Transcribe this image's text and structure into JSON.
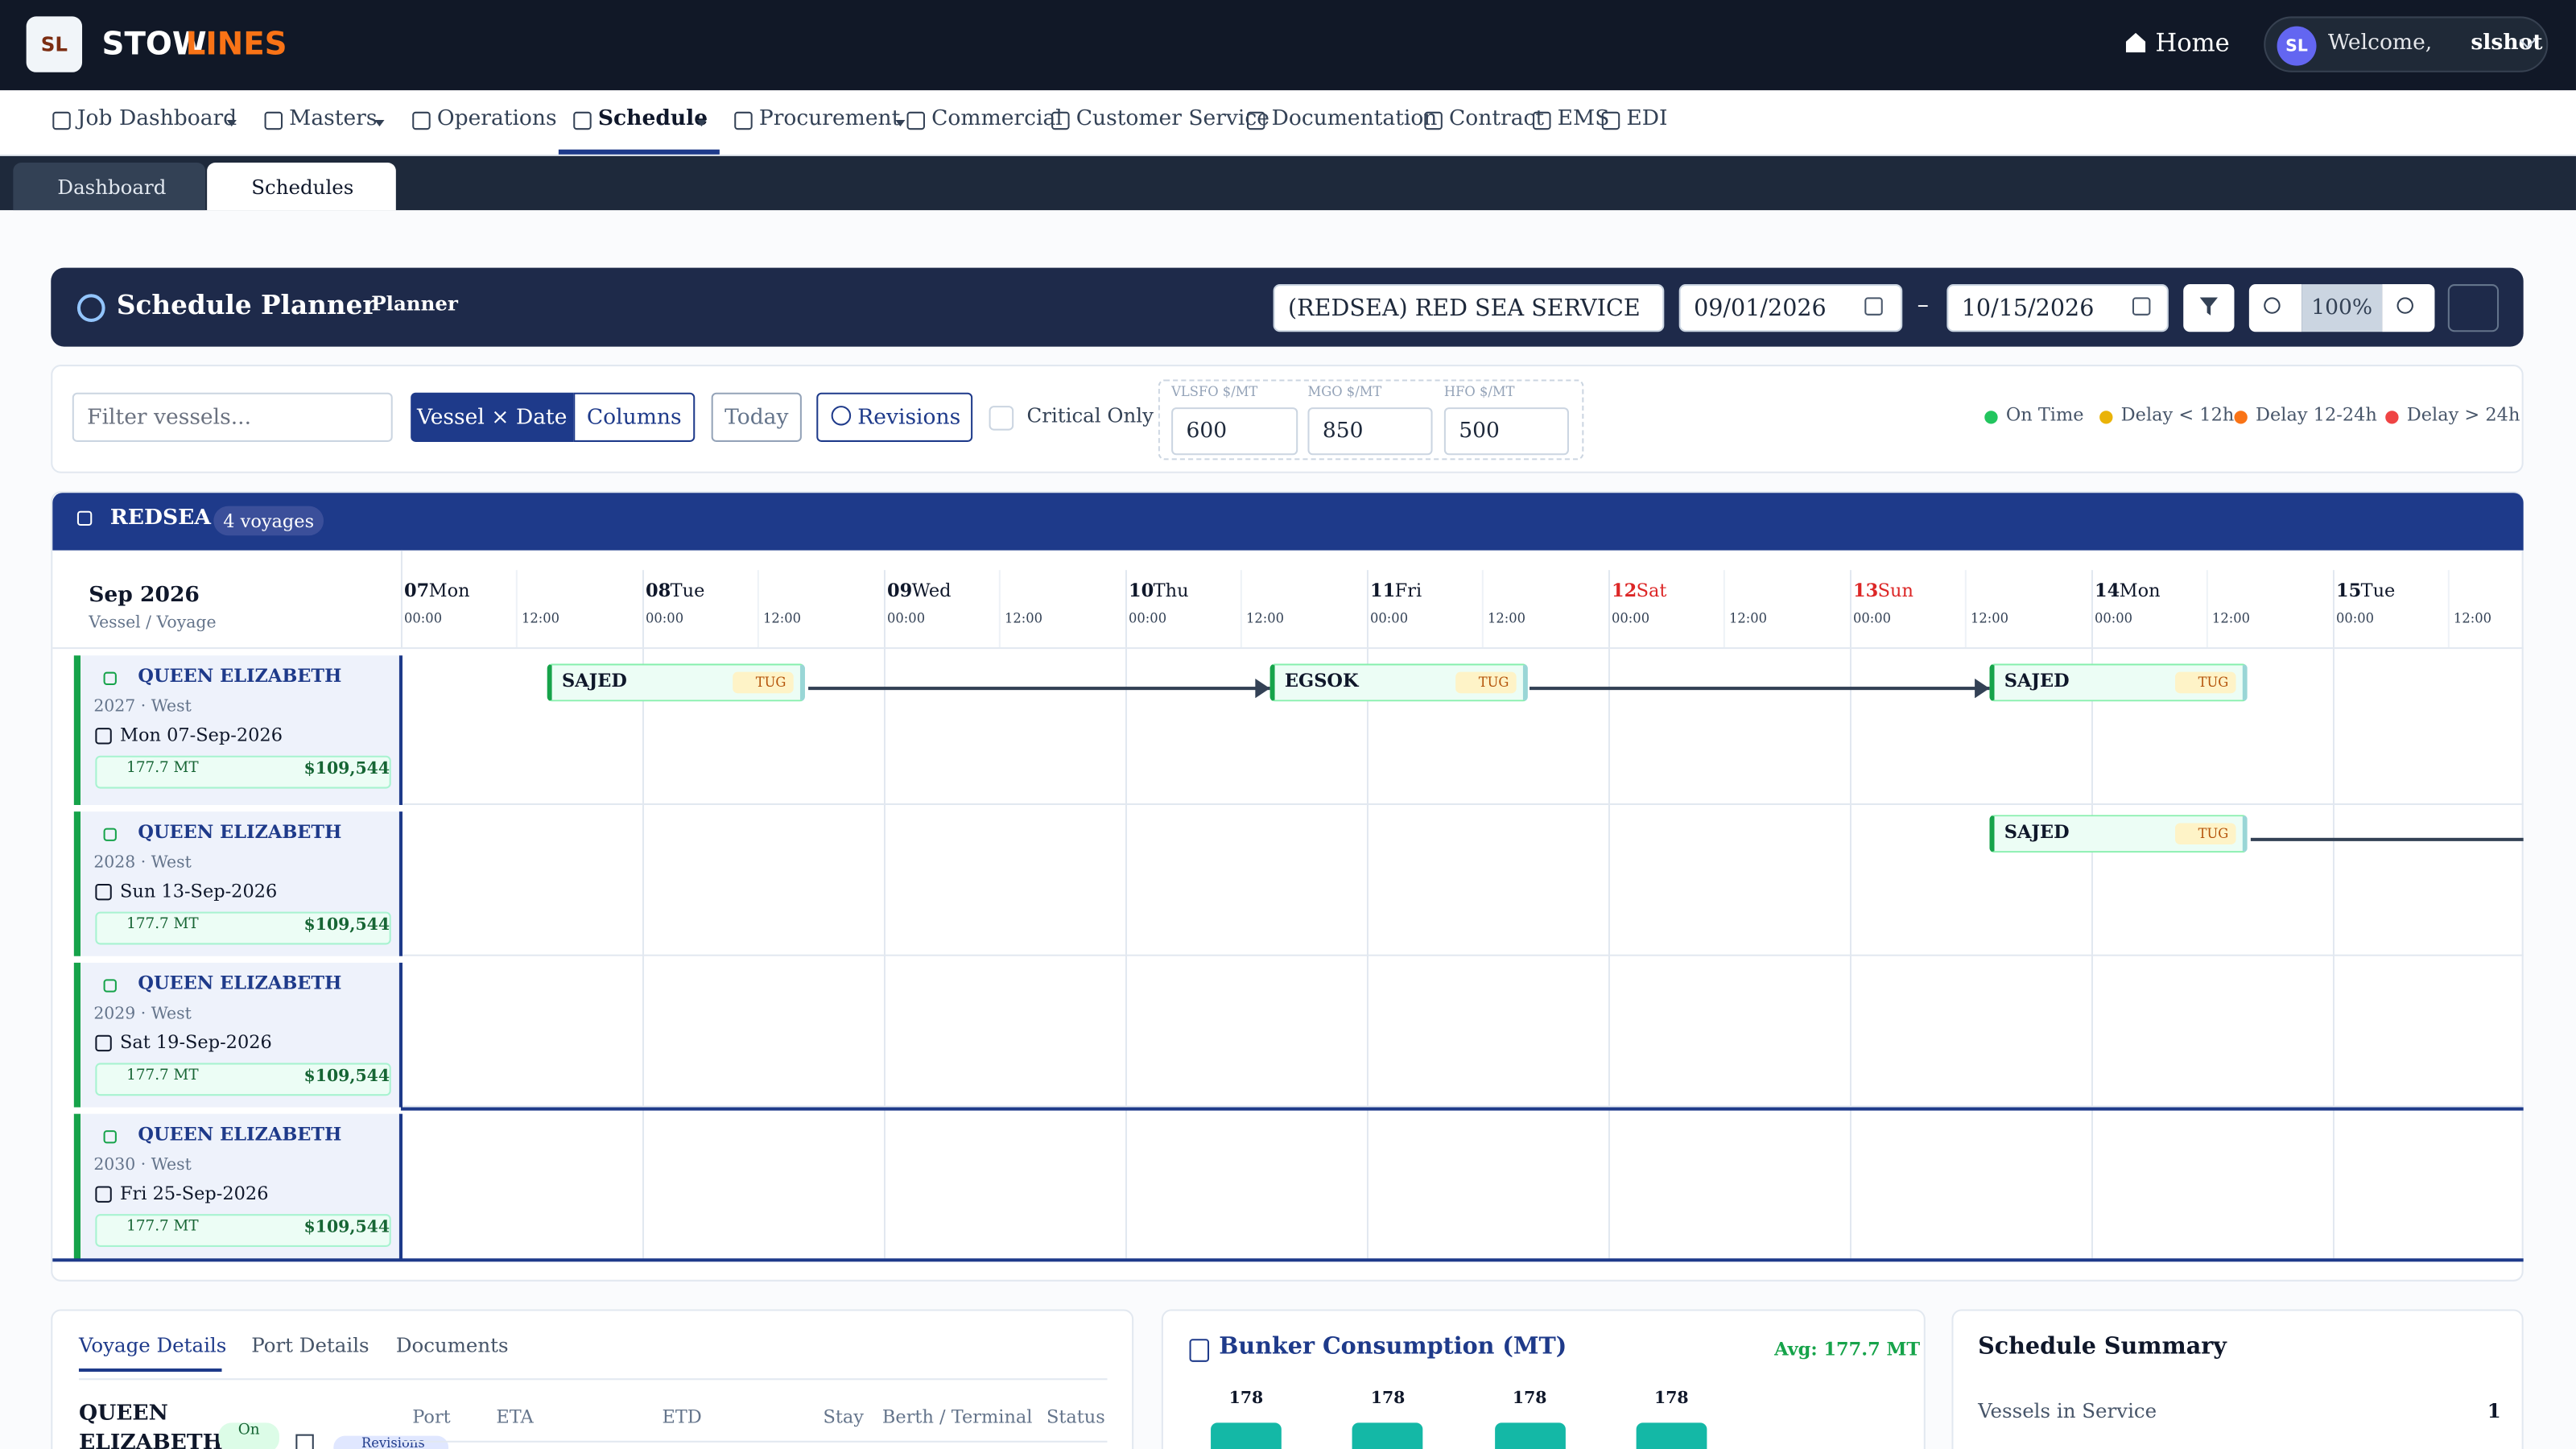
{
  "brand": {
    "logo": "SL",
    "name_a": "STOW",
    "name_b": "LINES"
  },
  "header": {
    "home": "Home",
    "avatar": "SL",
    "welcome": "Welcome,",
    "user": "slshot"
  },
  "nav": [
    "Job Dashboard",
    "Masters",
    "Operations",
    "Schedule",
    "Procurement",
    "Commercial",
    "Customer Service",
    "Documentation",
    "Contract",
    "EMS",
    "EDI"
  ],
  "tabs": [
    "Dashboard",
    "Schedules"
  ],
  "planner": {
    "title": "Schedule Planner",
    "subtitle": "Planner",
    "service": "(REDSEA) RED SEA SERVICE",
    "from": "09/01/2026",
    "dash": "–",
    "to": "10/15/2026",
    "zoom": "100%"
  },
  "toolbar": {
    "filter_placeholder": "Filter vessels...",
    "view": [
      "Vessel × Date",
      "Columns"
    ],
    "today": "Today",
    "revisions": "Revisions",
    "critical": "Critical Only",
    "fuels": [
      {
        "label": "VLSFO $/MT",
        "value": "600"
      },
      {
        "label": "MGO $/MT",
        "value": "850"
      },
      {
        "label": "HFO $/MT",
        "value": "500"
      }
    ],
    "legend": [
      {
        "label": "On Time",
        "color": "#22c55e"
      },
      {
        "label": "Delay < 12h",
        "color": "#eab308"
      },
      {
        "label": "Delay 12-24h",
        "color": "#f97316"
      },
      {
        "label": "Delay > 24h",
        "color": "#ef4444"
      }
    ]
  },
  "group": {
    "name": "REDSEA",
    "count": "4 voyages"
  },
  "timeline": {
    "month": "Sep 2026",
    "sub": "Vessel / Voyage",
    "hours": [
      "00:00",
      "12:00"
    ],
    "days": [
      {
        "num": "07",
        "name": "Mon",
        "weekend": false
      },
      {
        "num": "08",
        "name": "Tue",
        "weekend": false
      },
      {
        "num": "09",
        "name": "Wed",
        "weekend": false
      },
      {
        "num": "10",
        "name": "Thu",
        "weekend": false
      },
      {
        "num": "11",
        "name": "Fri",
        "weekend": false
      },
      {
        "num": "12",
        "name": "Sat",
        "weekend": true
      },
      {
        "num": "13",
        "name": "Sun",
        "weekend": true
      },
      {
        "num": "14",
        "name": "Mon",
        "weekend": false
      },
      {
        "num": "15",
        "name": "Tue",
        "weekend": false
      }
    ]
  },
  "vessels": [
    {
      "name": "QUEEN ELIZABETH",
      "voyage": "2027 · West",
      "date": "Mon 07-Sep-2026",
      "fuel": "177.7 MT",
      "cost": "$109,544"
    },
    {
      "name": "QUEEN ELIZABETH",
      "voyage": "2028 · West",
      "date": "Sun 13-Sep-2026",
      "fuel": "177.7 MT",
      "cost": "$109,544"
    },
    {
      "name": "QUEEN ELIZABETH",
      "voyage": "2029 · West",
      "date": "Sat 19-Sep-2026",
      "fuel": "177.7 MT",
      "cost": "$109,544"
    },
    {
      "name": "QUEEN ELIZABETH",
      "voyage": "2030 · West",
      "date": "Fri 25-Sep-2026",
      "fuel": "177.7 MT",
      "cost": "$109,544"
    }
  ],
  "port_calls": [
    {
      "port": "SAJED",
      "tag": "TUG"
    },
    {
      "port": "EGSOK",
      "tag": "TUG"
    },
    {
      "port": "SAJED",
      "tag": "TUG"
    },
    {
      "port": "SAJED",
      "tag": "TUG"
    }
  ],
  "details": {
    "tabs": [
      "Voyage Details",
      "Port Details",
      "Documents"
    ],
    "vessel": "QUEEN ELIZABETH",
    "status": "On",
    "revisions": "Revisions",
    "columns": [
      "Port",
      "ETA",
      "ETD",
      "Stay",
      "Berth / Terminal",
      "Status"
    ]
  },
  "bunker": {
    "title": "Bunker Consumption (MT)",
    "avg": "Avg: 177.7 MT",
    "values": [
      178,
      178,
      178,
      178
    ]
  },
  "summary": {
    "title": "Schedule Summary",
    "rows": [
      {
        "label": "Vessels in Service",
        "value": "1"
      }
    ]
  }
}
